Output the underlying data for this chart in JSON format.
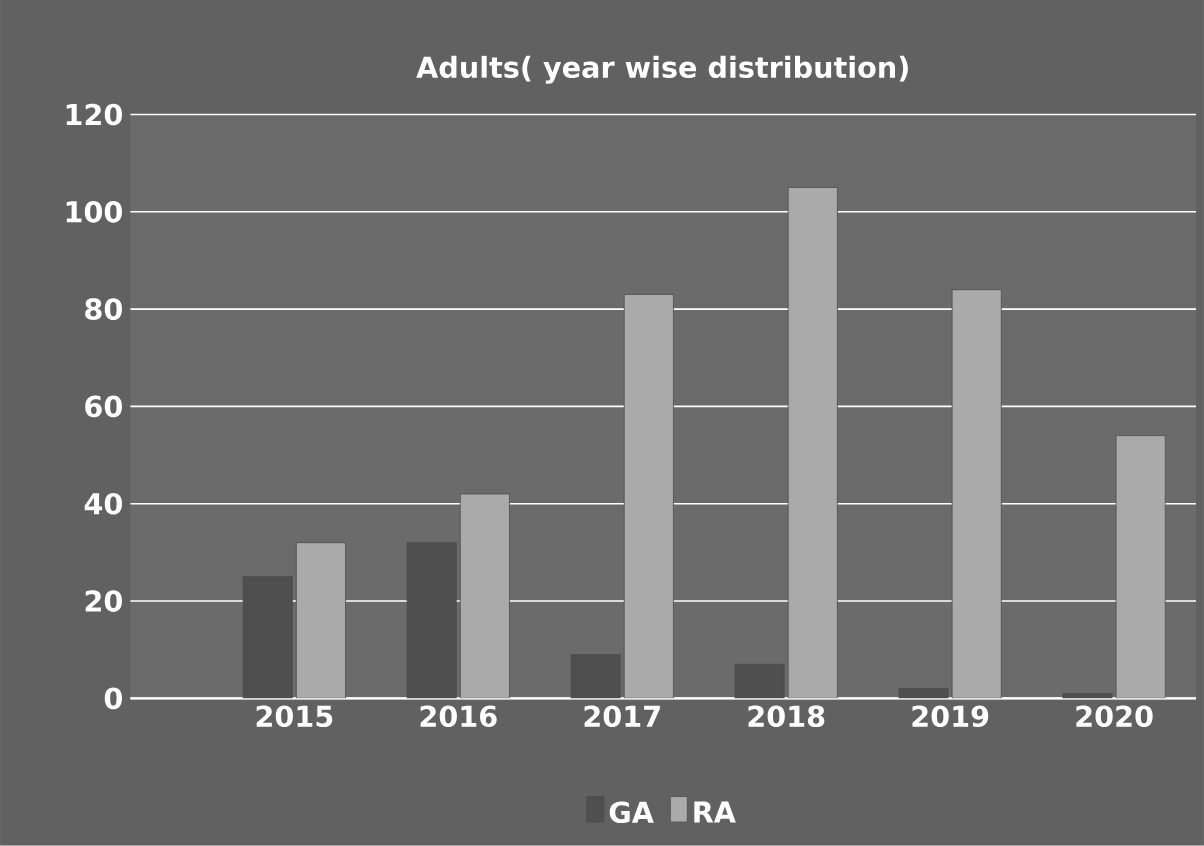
{
  "chart_data": {
    "type": "bar",
    "title": "Adults( year wise distribution)",
    "categories": [
      "2015",
      "2016",
      "2017",
      "2018",
      "2019",
      "2020"
    ],
    "series": [
      {
        "name": "GA",
        "color": "#4f4f4f",
        "values": [
          25,
          32,
          9,
          7,
          2,
          1
        ]
      },
      {
        "name": "RA",
        "color": "#aaaaaa",
        "values": [
          32,
          42,
          83,
          105,
          84,
          54
        ]
      }
    ],
    "ylim": [
      0,
      120
    ],
    "yticks": [
      0,
      20,
      40,
      60,
      80,
      100,
      120
    ],
    "grid": "y",
    "legend": "bottom"
  }
}
